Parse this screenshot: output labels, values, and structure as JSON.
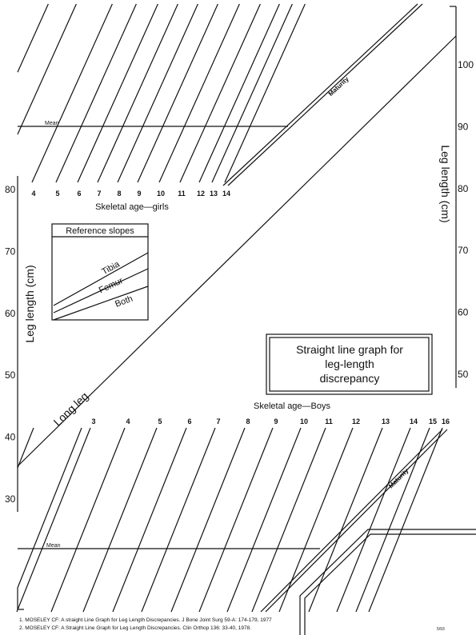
{
  "left_axis": {
    "title": "Leg length (cm)",
    "ticks": [
      "80",
      "70",
      "60",
      "50",
      "40",
      "30"
    ]
  },
  "right_axis": {
    "title": "Leg length (cm)",
    "ticks": [
      "100",
      "90",
      "80",
      "70",
      "60",
      "50"
    ]
  },
  "girls": {
    "label": "Skeletal age—girls",
    "ages": [
      "4",
      "5",
      "6",
      "7",
      "8",
      "9",
      "10",
      "11",
      "12",
      "13",
      "14"
    ],
    "mean": "Mean",
    "maturity": "Maturity"
  },
  "boys": {
    "label": "Skeletal age—Boys",
    "ages": [
      "3",
      "4",
      "5",
      "6",
      "7",
      "8",
      "9",
      "10",
      "11",
      "12",
      "13",
      "14",
      "15",
      "16"
    ],
    "mean": "Mean",
    "maturity": "Maturity"
  },
  "long_leg": "Long leg",
  "reference": {
    "title": "Reference slopes",
    "labels": [
      "Tibia",
      "Femur",
      "Both"
    ]
  },
  "title_box": {
    "lines": [
      "Straight line graph for",
      "leg-length",
      "discrepancy"
    ]
  },
  "footnotes": [
    "1. MOSELEY CF: A straight Line Graph for Leg Length Discrepancies. J Bone Joint Surg 59-A: 174-179, 1977",
    "2. MOSELEY CF: A Straight Line Graph for Leg Length Discrepancies. Clin Orthop 136: 33-40, 1978."
  ],
  "code": "5/93"
}
